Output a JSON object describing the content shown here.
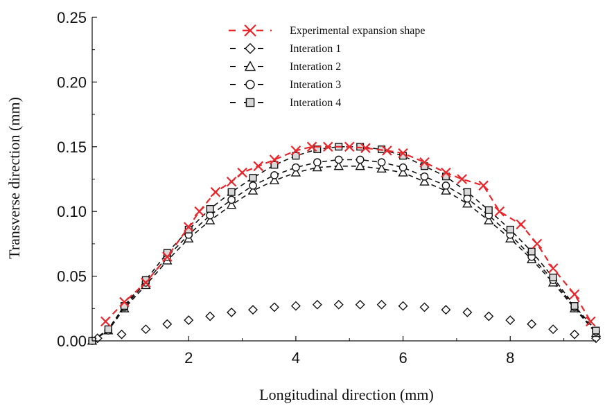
{
  "chart_data": {
    "type": "line",
    "title": "",
    "xlabel": "Longitudinal direction (mm)",
    "ylabel": "Transverse direction (mm)",
    "xlim": [
      0.2,
      9.6
    ],
    "ylim": [
      0.0,
      0.25
    ],
    "xticks": [
      2,
      4,
      6,
      8
    ],
    "xtick_labels": [
      "2",
      "4",
      "6",
      "8"
    ],
    "yticks": [
      0.0,
      0.05,
      0.1,
      0.15,
      0.2,
      0.25
    ],
    "ytick_labels": [
      "0.00",
      "0.05",
      "0.10",
      "0.15",
      "0.20",
      "0.25"
    ],
    "grid": false,
    "legend_position": "top-center",
    "series": [
      {
        "name": "Experimental expansion shape",
        "color": "#e8262b",
        "marker": "x",
        "line": "dashed",
        "x": [
          0.45,
          0.8,
          1.2,
          1.6,
          2.0,
          2.2,
          2.5,
          2.8,
          3.0,
          3.3,
          3.6,
          4.0,
          4.3,
          4.6,
          5.0,
          5.3,
          5.7,
          6.0,
          6.4,
          6.8,
          7.1,
          7.5,
          7.8,
          8.2,
          8.5,
          8.8,
          9.2,
          9.5
        ],
        "y": [
          0.015,
          0.03,
          0.045,
          0.065,
          0.088,
          0.1,
          0.115,
          0.123,
          0.13,
          0.135,
          0.14,
          0.147,
          0.15,
          0.15,
          0.15,
          0.149,
          0.147,
          0.145,
          0.138,
          0.13,
          0.125,
          0.12,
          0.1,
          0.09,
          0.075,
          0.056,
          0.036,
          0.015
        ]
      },
      {
        "name": "Interation 1",
        "color": "#111111",
        "marker": "diamond",
        "line": "none",
        "x": [
          0.3,
          0.75,
          1.2,
          1.6,
          2.0,
          2.4,
          2.8,
          3.2,
          3.6,
          4.0,
          4.4,
          4.8,
          5.2,
          5.6,
          6.0,
          6.4,
          6.8,
          7.2,
          7.6,
          8.0,
          8.4,
          8.8,
          9.2,
          9.6
        ],
        "y": [
          0.002,
          0.005,
          0.009,
          0.013,
          0.016,
          0.019,
          0.022,
          0.024,
          0.026,
          0.027,
          0.028,
          0.028,
          0.028,
          0.028,
          0.027,
          0.026,
          0.024,
          0.022,
          0.019,
          0.016,
          0.013,
          0.009,
          0.005,
          0.002
        ]
      },
      {
        "name": "Interation 2",
        "color": "#111111",
        "marker": "triangle",
        "line": "dashed",
        "x": [
          0.2,
          0.5,
          0.8,
          1.2,
          1.6,
          2.0,
          2.4,
          2.8,
          3.2,
          3.6,
          4.0,
          4.4,
          4.8,
          5.2,
          5.6,
          6.0,
          6.4,
          6.8,
          7.2,
          7.6,
          8.0,
          8.4,
          8.8,
          9.2,
          9.6
        ],
        "y": [
          0.0,
          0.008,
          0.025,
          0.043,
          0.062,
          0.079,
          0.093,
          0.105,
          0.116,
          0.124,
          0.13,
          0.134,
          0.135,
          0.135,
          0.133,
          0.13,
          0.123,
          0.116,
          0.106,
          0.093,
          0.079,
          0.063,
          0.045,
          0.025,
          0.006
        ]
      },
      {
        "name": "Interation 3",
        "color": "#111111",
        "marker": "circle",
        "line": "dashed",
        "x": [
          0.2,
          0.5,
          0.8,
          1.2,
          1.6,
          2.0,
          2.4,
          2.8,
          3.2,
          3.6,
          4.0,
          4.4,
          4.8,
          5.2,
          5.6,
          6.0,
          6.4,
          6.8,
          7.2,
          7.6,
          8.0,
          8.4,
          8.8,
          9.2,
          9.6
        ],
        "y": [
          0.0,
          0.008,
          0.026,
          0.045,
          0.065,
          0.082,
          0.097,
          0.109,
          0.12,
          0.128,
          0.134,
          0.138,
          0.14,
          0.14,
          0.138,
          0.134,
          0.127,
          0.12,
          0.11,
          0.097,
          0.082,
          0.065,
          0.047,
          0.026,
          0.007
        ]
      },
      {
        "name": "Interation 4",
        "color": "#111111",
        "marker": "square",
        "line": "dashed",
        "x": [
          0.2,
          0.5,
          0.8,
          1.2,
          1.6,
          2.0,
          2.4,
          2.8,
          3.2,
          3.6,
          4.0,
          4.4,
          4.8,
          5.2,
          5.6,
          6.0,
          6.4,
          6.8,
          7.2,
          7.6,
          8.0,
          8.4,
          8.8,
          9.2,
          9.6
        ],
        "y": [
          0.0,
          0.009,
          0.027,
          0.047,
          0.068,
          0.086,
          0.102,
          0.115,
          0.126,
          0.136,
          0.143,
          0.148,
          0.15,
          0.15,
          0.148,
          0.143,
          0.135,
          0.127,
          0.115,
          0.101,
          0.086,
          0.069,
          0.049,
          0.027,
          0.008
        ]
      }
    ]
  }
}
